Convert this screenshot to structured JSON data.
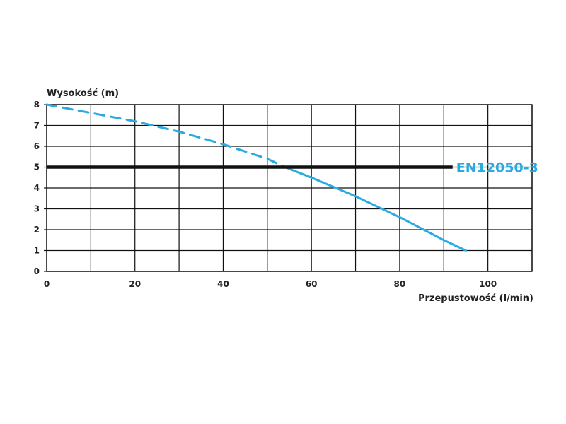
{
  "chart_data": {
    "type": "line",
    "title": "",
    "xlabel": "Przepustowość (l/min)",
    "ylabel": "Wysokość (m)",
    "xlim": [
      0,
      110
    ],
    "ylim": [
      0,
      8
    ],
    "x_ticks": [
      0,
      20,
      40,
      60,
      80,
      100
    ],
    "y_ticks": [
      0,
      1,
      2,
      3,
      4,
      5,
      6,
      7,
      8
    ],
    "grid": true,
    "legend": "none",
    "colors": {
      "curve": "#29abe2",
      "reference": "#111111",
      "reference_label": "#29abe2",
      "grid": "#111111"
    },
    "series": [
      {
        "style": "dashed",
        "x": [
          0,
          10,
          20,
          30,
          40,
          50,
          54
        ],
        "y": [
          8.0,
          7.6,
          7.2,
          6.7,
          6.1,
          5.4,
          5.0
        ]
      },
      {
        "style": "solid",
        "x": [
          54,
          60,
          70,
          80,
          90,
          95
        ],
        "y": [
          5.0,
          4.5,
          3.6,
          2.6,
          1.5,
          1.0
        ]
      }
    ],
    "reference_line": {
      "y": 5,
      "x_end": 92,
      "label": "EN12050-3"
    }
  }
}
